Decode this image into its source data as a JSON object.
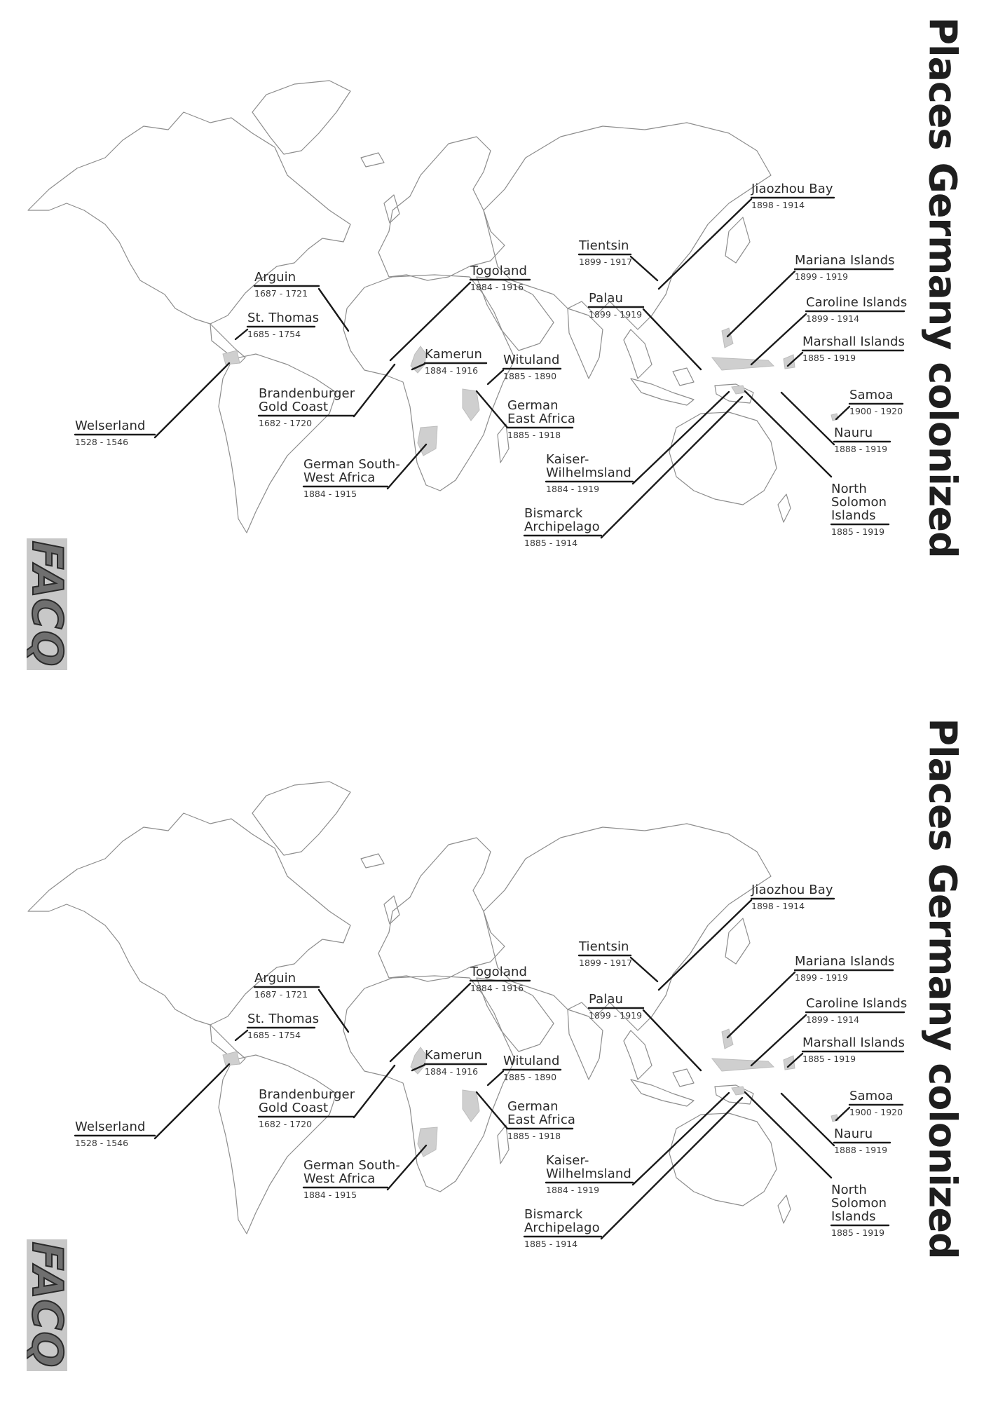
{
  "title": "Places Germany colonized",
  "logo_text": "FACQ",
  "colonies": [
    {
      "key": "arguin",
      "name": "Arguin",
      "dates": "1687 - 1721"
    },
    {
      "key": "st_thomas",
      "name": "St. Thomas",
      "dates": "1685 - 1754"
    },
    {
      "key": "welserland",
      "name": "Welserland",
      "dates": "1528 - 1546"
    },
    {
      "key": "brandenburger",
      "name": "Brandenburger\nGold Coast",
      "dates": "1682 - 1720"
    },
    {
      "key": "togoland",
      "name": "Togoland",
      "dates": "1884 - 1916"
    },
    {
      "key": "kamerun",
      "name": "Kamerun",
      "dates": "1884 - 1916"
    },
    {
      "key": "wituland",
      "name": "Wituland",
      "dates": "1885 - 1890"
    },
    {
      "key": "german_east_africa",
      "name": "German\nEast Africa",
      "dates": "1885 - 1918"
    },
    {
      "key": "german_sw_africa",
      "name": "German South-\nWest Africa",
      "dates": "1884 - 1915"
    },
    {
      "key": "tientsin",
      "name": "Tientsin",
      "dates": "1899 - 1917"
    },
    {
      "key": "palau",
      "name": "Palau",
      "dates": "1899 - 1919"
    },
    {
      "key": "jiaozhou",
      "name": "Jiaozhou Bay",
      "dates": "1898 - 1914"
    },
    {
      "key": "mariana",
      "name": "Mariana Islands",
      "dates": "1899 - 1919"
    },
    {
      "key": "caroline",
      "name": "Caroline Islands",
      "dates": "1899 - 1914"
    },
    {
      "key": "marshall",
      "name": "Marshall Islands",
      "dates": "1885 - 1919"
    },
    {
      "key": "samoa",
      "name": "Samoa",
      "dates": "1900 - 1920"
    },
    {
      "key": "nauru",
      "name": "Nauru",
      "dates": "1888 - 1919"
    },
    {
      "key": "north_solomon",
      "name": "North\nSolomon\nIslands",
      "dates": "1885 - 1919"
    },
    {
      "key": "kaiser",
      "name": "Kaiser-\nWilhelmsland",
      "dates": "1884 - 1919"
    },
    {
      "key": "bismarck",
      "name": "Bismarck\nArchipelago",
      "dates": "1885 - 1914"
    }
  ]
}
